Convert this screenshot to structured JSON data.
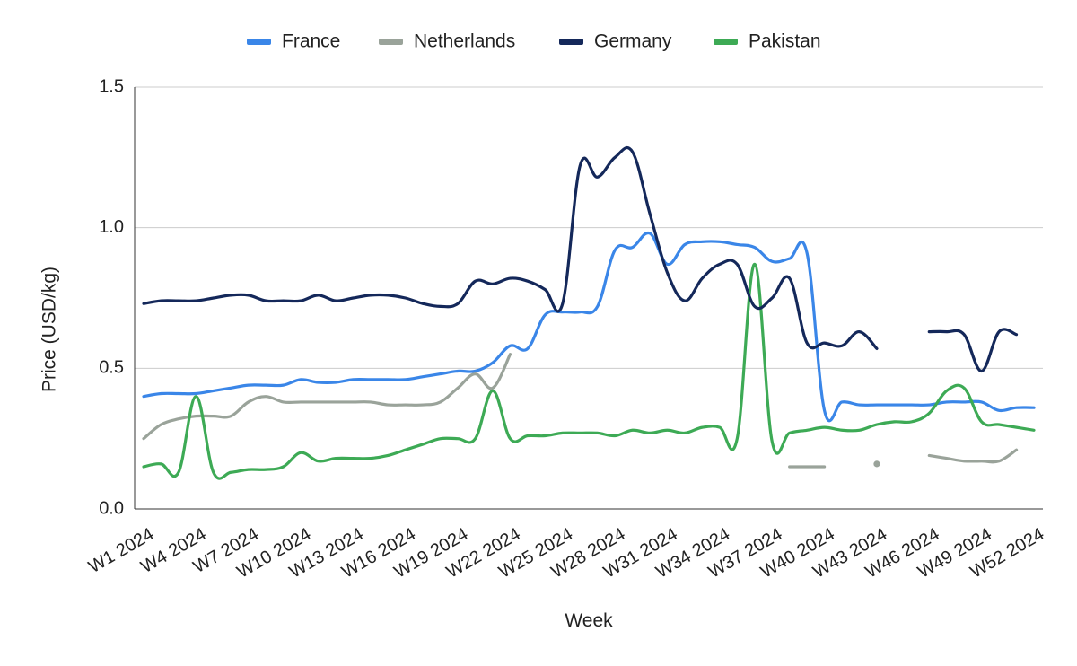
{
  "chart_data": {
    "type": "line",
    "title": "",
    "xlabel": "Week",
    "ylabel": "Price (USD/kg)",
    "ylim": [
      0,
      1.5
    ],
    "yticks": [
      "0.0",
      "0.5",
      "1.0",
      "1.5"
    ],
    "grid": true,
    "legend_position": "top-center",
    "x_tick_labels": [
      "W1 2024",
      "W4 2024",
      "W7 2024",
      "W10 2024",
      "W13 2024",
      "W16 2024",
      "W19 2024",
      "W22 2024",
      "W25 2024",
      "W28 2024",
      "W31 2024",
      "W34 2024",
      "W37 2024",
      "W40 2024",
      "W43 2024",
      "W46 2024",
      "W49 2024",
      "W52 2024"
    ],
    "x": [
      "W1 2024",
      "W2 2024",
      "W3 2024",
      "W4 2024",
      "W5 2024",
      "W6 2024",
      "W7 2024",
      "W8 2024",
      "W9 2024",
      "W10 2024",
      "W11 2024",
      "W12 2024",
      "W13 2024",
      "W14 2024",
      "W15 2024",
      "W16 2024",
      "W17 2024",
      "W18 2024",
      "W19 2024",
      "W20 2024",
      "W21 2024",
      "W22 2024",
      "W23 2024",
      "W24 2024",
      "W25 2024",
      "W26 2024",
      "W27 2024",
      "W28 2024",
      "W29 2024",
      "W30 2024",
      "W31 2024",
      "W32 2024",
      "W33 2024",
      "W34 2024",
      "W35 2024",
      "W36 2024",
      "W37 2024",
      "W38 2024",
      "W39 2024",
      "W40 2024",
      "W41 2024",
      "W42 2024",
      "W43 2024",
      "W44 2024",
      "W45 2024",
      "W46 2024",
      "W47 2024",
      "W48 2024",
      "W49 2024",
      "W50 2024",
      "W51 2024",
      "W52 2024"
    ],
    "series": [
      {
        "name": "France",
        "color": "#3a86e8",
        "values": [
          0.4,
          0.41,
          0.41,
          0.41,
          0.42,
          0.43,
          0.44,
          0.44,
          0.44,
          0.46,
          0.45,
          0.45,
          0.46,
          0.46,
          0.46,
          0.46,
          0.47,
          0.48,
          0.49,
          0.49,
          0.52,
          0.58,
          0.57,
          0.69,
          0.7,
          0.7,
          0.72,
          0.92,
          0.93,
          0.98,
          0.87,
          0.94,
          0.95,
          0.95,
          0.94,
          0.93,
          0.88,
          0.89,
          0.91,
          0.35,
          0.38,
          0.37,
          0.37,
          0.37,
          0.37,
          0.37,
          0.38,
          0.38,
          0.38,
          0.35,
          0.36,
          0.36
        ]
      },
      {
        "name": "Netherlands",
        "color": "#9aa39a",
        "values": [
          0.25,
          0.3,
          0.32,
          0.33,
          0.33,
          0.33,
          0.38,
          0.4,
          0.38,
          0.38,
          0.38,
          0.38,
          0.38,
          0.38,
          0.37,
          0.37,
          0.37,
          0.38,
          0.43,
          0.48,
          0.43,
          0.55,
          null,
          null,
          null,
          null,
          null,
          null,
          null,
          null,
          null,
          null,
          null,
          null,
          null,
          null,
          null,
          0.15,
          0.15,
          0.15,
          null,
          null,
          0.16,
          null,
          null,
          0.19,
          0.18,
          0.17,
          0.17,
          0.17,
          0.21,
          null
        ]
      },
      {
        "name": "Germany",
        "color": "#14285a",
        "values": [
          0.73,
          0.74,
          0.74,
          0.74,
          0.75,
          0.76,
          0.76,
          0.74,
          0.74,
          0.74,
          0.76,
          0.74,
          0.75,
          0.76,
          0.76,
          0.75,
          0.73,
          0.72,
          0.73,
          0.81,
          0.8,
          0.82,
          0.81,
          0.78,
          0.73,
          1.22,
          1.18,
          1.25,
          1.27,
          1.05,
          0.84,
          0.74,
          0.82,
          0.87,
          0.87,
          0.72,
          0.75,
          0.82,
          0.59,
          0.59,
          0.58,
          0.63,
          0.57,
          null,
          null,
          0.63,
          0.63,
          0.62,
          0.49,
          0.63,
          0.62,
          null
        ]
      },
      {
        "name": "Pakistan",
        "color": "#3daa55",
        "values": [
          0.15,
          0.16,
          0.13,
          0.4,
          0.13,
          0.13,
          0.14,
          0.14,
          0.15,
          0.2,
          0.17,
          0.18,
          0.18,
          0.18,
          0.19,
          0.21,
          0.23,
          0.25,
          0.25,
          0.25,
          0.42,
          0.25,
          0.26,
          0.26,
          0.27,
          0.27,
          0.27,
          0.26,
          0.28,
          0.27,
          0.28,
          0.27,
          0.29,
          0.29,
          0.25,
          0.87,
          0.24,
          0.27,
          0.28,
          0.29,
          0.28,
          0.28,
          0.3,
          0.31,
          0.31,
          0.34,
          0.42,
          0.43,
          0.31,
          0.3,
          0.29,
          0.28
        ]
      }
    ]
  }
}
